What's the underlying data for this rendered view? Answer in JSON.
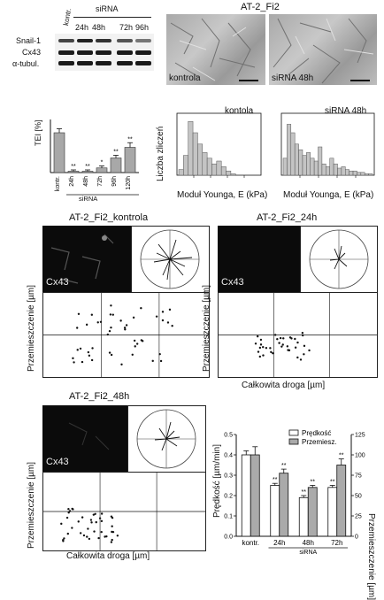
{
  "blot": {
    "header_kontr": "kontr.",
    "header_sirna": "siRNA",
    "lanes": [
      "24h",
      "48h",
      "72h",
      "96h"
    ],
    "rows": [
      "Snail-1",
      "Cx43",
      "α-tubul."
    ]
  },
  "micro": {
    "title": "AT-2_Fi2",
    "left_label": "kontrola",
    "right_label": "siRNA 48h"
  },
  "tei": {
    "ylabel": "TEI [%]",
    "xlabel": "siRNA",
    "categories": [
      "kontr.",
      "24h",
      "48h",
      "72h",
      "96h",
      "120h"
    ],
    "sig": [
      "",
      "**",
      "**",
      "*",
      "**",
      "**"
    ]
  },
  "hist": {
    "ylabel": "Liczba zliczeń",
    "left_title": "kontola",
    "right_title": "siRNA 48h",
    "xlabel": "Moduł Younga, E (kPa)"
  },
  "migration": {
    "panel1_title": "AT-2_Fi2_kontrola",
    "panel2_title": "AT-2_Fi2_24h",
    "panel3_title": "AT-2_Fi2_48h",
    "cx43": "Cx43",
    "ylabel": "Przemieszczenie [µm]",
    "xlabel": "Całkowita droga [µm]"
  },
  "chart_data": [
    {
      "type": "bar",
      "title": "",
      "ylabel": "TEI [%]",
      "categories": [
        "kontr.",
        "24h",
        "48h",
        "72h",
        "96h",
        "120h"
      ],
      "values": [
        6.0,
        0.2,
        0.2,
        0.7,
        2.2,
        3.8
      ],
      "errors": [
        0.6,
        0.2,
        0.2,
        0.3,
        0.4,
        0.7
      ],
      "ylim": [
        0,
        8
      ]
    },
    {
      "type": "bar",
      "title": "kontola",
      "xlabel": "Moduł Younga, E (kPa)",
      "ylabel": "Liczba zliczeń",
      "values": [
        4,
        14,
        38,
        30,
        22,
        16,
        12,
        8,
        10,
        6,
        3,
        1,
        0,
        0,
        0,
        0,
        0
      ]
    },
    {
      "type": "bar",
      "title": "siRNA 48h",
      "xlabel": "Moduł Younga, E (kPa)",
      "ylabel": "Liczba zliczeń",
      "values": [
        12,
        36,
        30,
        22,
        18,
        14,
        16,
        12,
        10,
        20,
        8,
        6,
        12,
        8,
        5,
        6,
        4,
        3,
        3,
        2,
        2,
        1,
        1
      ]
    },
    {
      "type": "bar",
      "ylabel": "Prędkość [µm/min]",
      "y2label": "Przemieszczenie [µm]",
      "xlabel": "siRNA",
      "categories": [
        "kontr.",
        "24h",
        "48h",
        "72h"
      ],
      "series": [
        {
          "name": "Prędkość",
          "values": [
            0.4,
            0.25,
            0.19,
            0.24
          ],
          "errors": [
            0.02,
            0.01,
            0.01,
            0.01
          ]
        },
        {
          "name": "Przemiesz.",
          "values": [
            0.4,
            0.31,
            0.24,
            0.35
          ],
          "errors": [
            0.04,
            0.02,
            0.01,
            0.03
          ]
        }
      ],
      "ylim": [
        0,
        0.5
      ],
      "y2lim": [
        0,
        125
      ],
      "yticks": [
        "0.0",
        "0.1",
        "0.2",
        "0.3",
        "0.4",
        "0.5"
      ],
      "y2ticks": [
        "0",
        "25",
        "50",
        "75",
        "100",
        "125"
      ],
      "sig": [
        "",
        "**",
        "**",
        "**"
      ]
    }
  ]
}
